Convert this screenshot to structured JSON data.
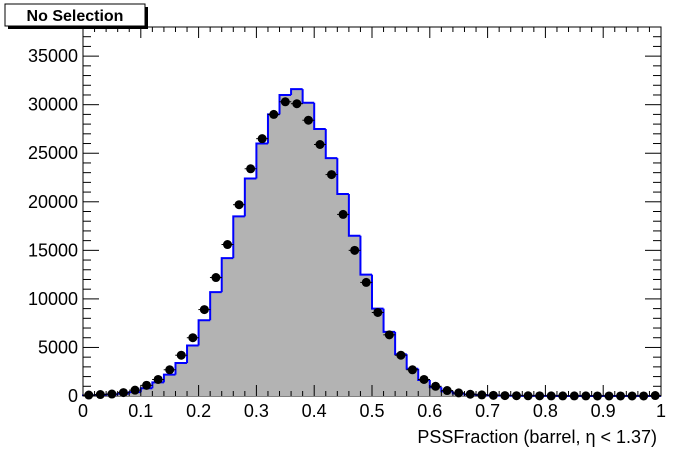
{
  "chart_data": {
    "type": "histogram",
    "title": "No Selection",
    "xlabel": "PSSFraction (barrel,  η < 1.37)",
    "ylabel": "",
    "xlim": [
      0,
      1
    ],
    "ylim": [
      0,
      38000
    ],
    "x_ticks": [
      0,
      0.1,
      0.2,
      0.3,
      0.4,
      0.5,
      0.6,
      0.7,
      0.8,
      0.9,
      1
    ],
    "x_tick_labels": [
      "0",
      "0.1",
      "0.2",
      "0.3",
      "0.4",
      "0.5",
      "0.6",
      "0.7",
      "0.8",
      "0.9",
      "1"
    ],
    "y_ticks": [
      0,
      5000,
      10000,
      15000,
      20000,
      25000,
      30000,
      35000
    ],
    "y_tick_labels": [
      "0",
      "5000",
      "10000",
      "15000",
      "20000",
      "25000",
      "30000",
      "35000"
    ],
    "grid": false,
    "bin_width": 0.02,
    "series": [
      {
        "kind": "filled-step",
        "color": "#0000ff",
        "fill": "#b3b3b3",
        "bin_lows": [
          0,
          0.02,
          0.04,
          0.06,
          0.08,
          0.1,
          0.12,
          0.14,
          0.16,
          0.18,
          0.2,
          0.22,
          0.24,
          0.26,
          0.28,
          0.3,
          0.32,
          0.34,
          0.36,
          0.38,
          0.4,
          0.42,
          0.44,
          0.46,
          0.48,
          0.5,
          0.52,
          0.54,
          0.56,
          0.58,
          0.6,
          0.62,
          0.64,
          0.66,
          0.68,
          0.7,
          0.72,
          0.74,
          0.76,
          0.78,
          0.8,
          0.82,
          0.84,
          0.86,
          0.88,
          0.9,
          0.92,
          0.94,
          0.96,
          0.98
        ],
        "values": [
          50,
          100,
          150,
          250,
          400,
          800,
          1400,
          2200,
          3400,
          5200,
          7800,
          10700,
          14200,
          18500,
          22400,
          26000,
          29000,
          31000,
          31600,
          30200,
          27500,
          24500,
          20800,
          16500,
          12500,
          9000,
          6600,
          4300,
          2800,
          1650,
          900,
          480,
          270,
          160,
          100,
          60,
          40,
          25,
          15,
          10,
          8,
          6,
          5,
          4,
          3,
          3,
          2,
          2,
          2,
          2
        ]
      },
      {
        "kind": "points",
        "color": "#000000",
        "x": [
          0.01,
          0.03,
          0.05,
          0.07,
          0.09,
          0.11,
          0.13,
          0.15,
          0.17,
          0.19,
          0.21,
          0.23,
          0.25,
          0.27,
          0.29,
          0.31,
          0.33,
          0.35,
          0.37,
          0.39,
          0.41,
          0.43,
          0.45,
          0.47,
          0.49,
          0.51,
          0.53,
          0.55,
          0.57,
          0.59,
          0.61,
          0.63,
          0.65,
          0.67,
          0.69,
          0.71,
          0.73,
          0.75,
          0.77,
          0.79,
          0.81,
          0.83,
          0.85,
          0.87,
          0.89,
          0.91,
          0.93,
          0.95,
          0.97,
          0.99
        ],
        "y": [
          100,
          150,
          200,
          350,
          600,
          1100,
          1700,
          2700,
          4200,
          6000,
          8900,
          12200,
          15600,
          19700,
          23400,
          26500,
          29000,
          30300,
          30100,
          28400,
          25900,
          22800,
          18700,
          15000,
          11700,
          8600,
          6300,
          4200,
          2700,
          1700,
          1000,
          560,
          320,
          180,
          110,
          70,
          45,
          30,
          20,
          15,
          12,
          10,
          8,
          7,
          6,
          5,
          5,
          4,
          4,
          50
        ]
      }
    ]
  }
}
